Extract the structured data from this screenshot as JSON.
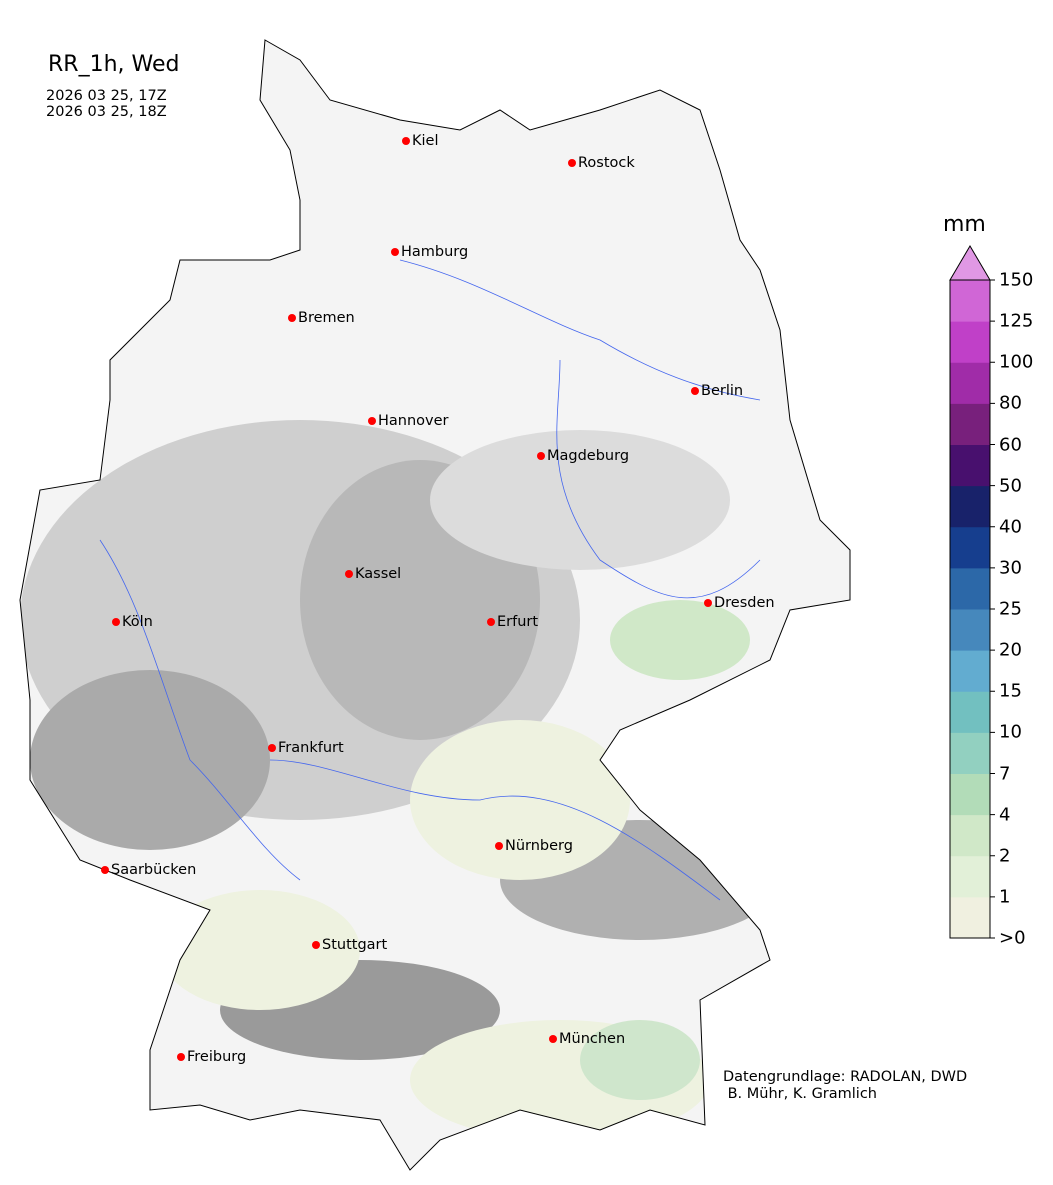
{
  "title": "RR_1h, Wed",
  "time_start": "2026 03 25, 17Z",
  "time_end": "2026 03 25, 18Z",
  "colorbar": {
    "unit": "mm",
    "ticks": [
      ">0",
      "1",
      "2",
      "4",
      "7",
      "10",
      "15",
      "20",
      "25",
      "30",
      "40",
      "50",
      "60",
      "80",
      "100",
      "125",
      "150"
    ],
    "colors": [
      "#f0f0e0",
      "#e2f0d8",
      "#d0e8c8",
      "#b2dcb8",
      "#92d0c0",
      "#72c0c0",
      "#62acd0",
      "#4688bc",
      "#2c68a8",
      "#163e8e",
      "#18226a",
      "#48106e",
      "#78207c",
      "#a02ca8",
      "#c040c8",
      "#d066d6"
    ],
    "extend_color": "#e098e4"
  },
  "cities": [
    {
      "name": "Kiel"
    },
    {
      "name": "Rostock"
    },
    {
      "name": "Hamburg"
    },
    {
      "name": "Bremen"
    },
    {
      "name": "Berlin"
    },
    {
      "name": "Hannover"
    },
    {
      "name": "Magdeburg"
    },
    {
      "name": "Kassel"
    },
    {
      "name": "Dresden"
    },
    {
      "name": "Köln"
    },
    {
      "name": "Erfurt"
    },
    {
      "name": "Frankfurt"
    },
    {
      "name": "Nürnberg"
    },
    {
      "name": "Saarbücken"
    },
    {
      "name": "Stuttgart"
    },
    {
      "name": "München"
    },
    {
      "name": "Freiburg"
    }
  ],
  "credit": "Datengrundlage: RADOLAN, DWD\n B. Mühr, K. Gramlich",
  "colors": {
    "city_marker": "#ff0000",
    "rivers": "#4466ee",
    "terrain_dark": "#8a8a8a",
    "terrain_light": "#e4e4e4"
  }
}
